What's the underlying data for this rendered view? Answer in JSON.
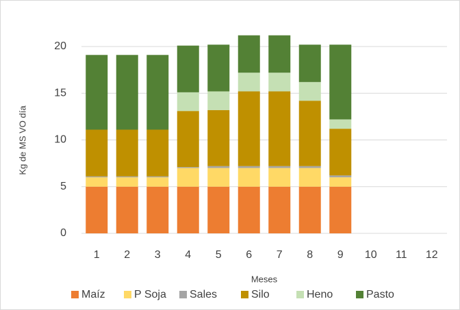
{
  "chart_data": {
    "type": "stacked_bar",
    "y_label": "Kg de MS VO día",
    "x_label": "Meses",
    "categories": [
      "1",
      "2",
      "3",
      "4",
      "5",
      "6",
      "7",
      "8",
      "9",
      "10",
      "11",
      "12"
    ],
    "series": [
      {
        "name": "Maíz",
        "color": "#ED7D31",
        "values": [
          5,
          5,
          5,
          5,
          5,
          5,
          5,
          5,
          5,
          null,
          null,
          null
        ]
      },
      {
        "name": "P Soja",
        "color": "#FFD966",
        "values": [
          1,
          1,
          1,
          2,
          2,
          2,
          2,
          2,
          1,
          null,
          null,
          null
        ]
      },
      {
        "name": "Sales",
        "color": "#A5A5A5",
        "values": [
          0.1,
          0.1,
          0.1,
          0.1,
          0.2,
          0.2,
          0.2,
          0.2,
          0.2,
          null,
          null,
          null
        ]
      },
      {
        "name": "Silo",
        "color": "#BF9000",
        "values": [
          5,
          5,
          5,
          6,
          6,
          8,
          8,
          7,
          5,
          null,
          null,
          null
        ]
      },
      {
        "name": "Heno",
        "color": "#C5E0B4",
        "values": [
          0,
          0,
          0,
          2,
          2,
          2,
          2,
          2,
          1,
          null,
          null,
          null
        ]
      },
      {
        "name": "Pasto",
        "color": "#538135",
        "values": [
          8,
          8,
          8,
          5,
          5,
          4,
          4,
          4,
          8,
          null,
          null,
          null
        ]
      }
    ],
    "ylim": [
      0,
      20
    ],
    "yticks": [
      0,
      5,
      10,
      15,
      20
    ],
    "grid": true,
    "legend": "bottom"
  }
}
